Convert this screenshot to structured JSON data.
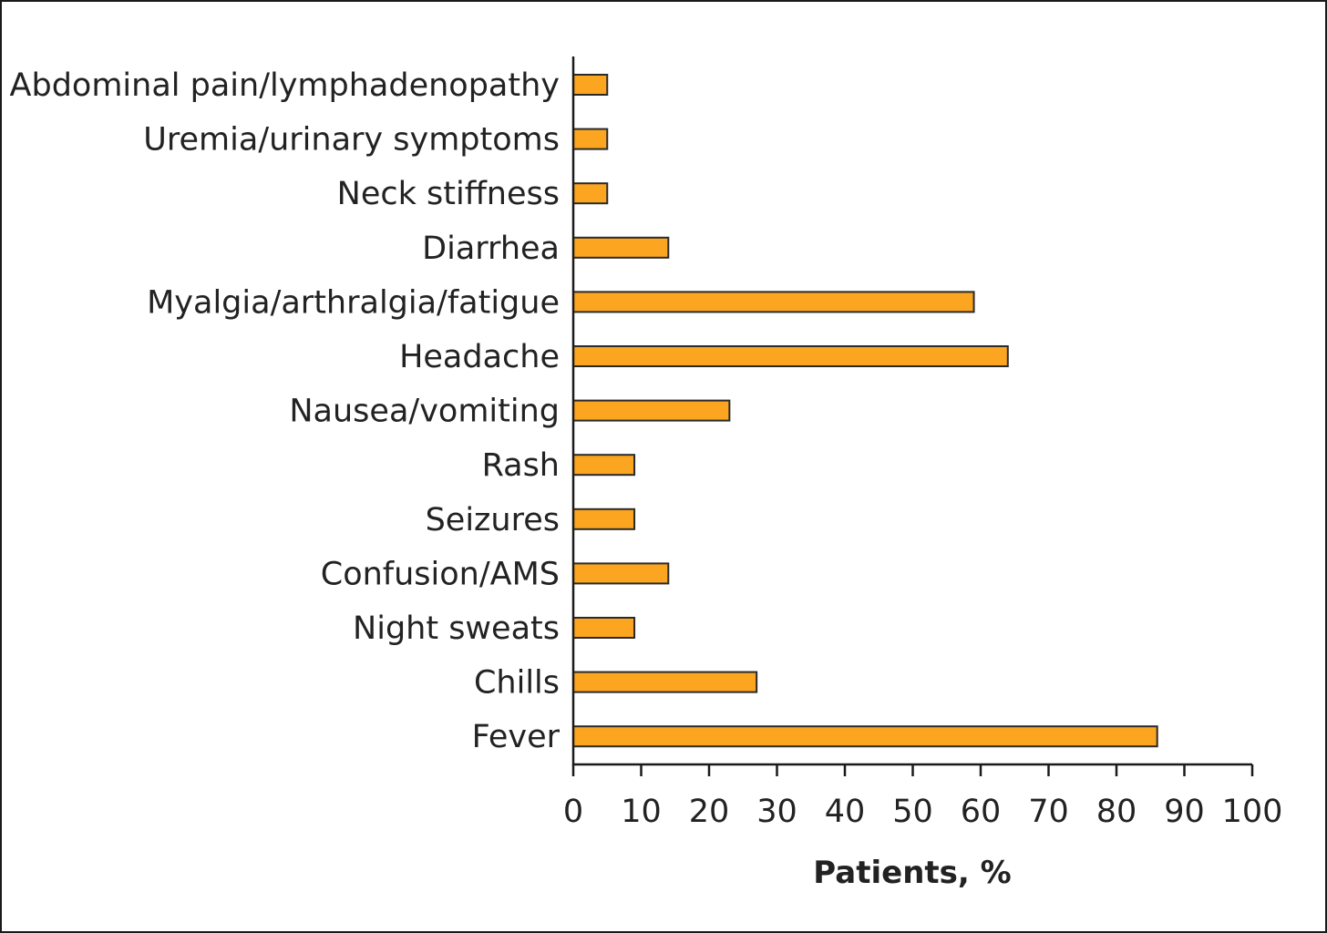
{
  "chart_data": {
    "type": "bar",
    "orientation": "horizontal",
    "categories": [
      "Abdominal pain/lymphadenopathy",
      "Uremia/urinary symptoms",
      "Neck stiffness",
      "Diarrhea",
      "Myalgia/arthralgia/fatigue",
      "Headache",
      "Nausea/vomiting",
      "Rash",
      "Seizures",
      "Confusion/AMS",
      "Night sweats",
      "Chills",
      "Fever"
    ],
    "values": [
      5,
      5,
      5,
      14,
      59,
      64,
      23,
      9,
      9,
      14,
      9,
      27,
      86
    ],
    "xlabel": "Patients, %",
    "ylabel": "",
    "xlim": [
      0,
      100
    ],
    "xticks": [
      "0",
      "10",
      "20",
      "30",
      "40",
      "50",
      "60",
      "70",
      "80",
      "90",
      "100"
    ],
    "bar_color": "#FBA520",
    "bar_edge_color": "#2a2a2a",
    "grid": false,
    "legend": "none"
  }
}
